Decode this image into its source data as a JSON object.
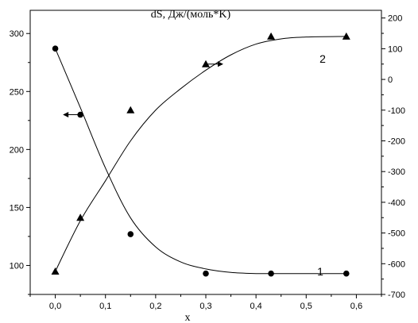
{
  "chart_data": {
    "type": "scatter",
    "title": "dS, Дж/(моль*K)",
    "xlabel": "x",
    "xlim": [
      -0.05,
      0.65
    ],
    "xticks": [
      "0,0",
      "0,1",
      "0,2",
      "0,3",
      "0,4",
      "0,5",
      "0,6"
    ],
    "y_left_lim": [
      75,
      320
    ],
    "y_left_ticks": [
      "100",
      "150",
      "200",
      "250",
      "300"
    ],
    "y_right_lim": [
      -700,
      225
    ],
    "y_right_ticks": [
      "200",
      "100",
      "0",
      "-100",
      "-200",
      "-300",
      "-400",
      "-500",
      "-600",
      "-700"
    ],
    "grid": false,
    "series": [
      {
        "label": "1",
        "axis": "left",
        "marker": "circle",
        "points": [
          [
            0.0,
            287
          ],
          [
            0.05,
            230
          ],
          [
            0.15,
            127
          ],
          [
            0.3,
            93
          ],
          [
            0.43,
            93
          ],
          [
            0.58,
            93
          ]
        ],
        "curve": [
          [
            0.0,
            287
          ],
          [
            0.05,
            236
          ],
          [
            0.1,
            184
          ],
          [
            0.15,
            141
          ],
          [
            0.2,
            116
          ],
          [
            0.25,
            103
          ],
          [
            0.3,
            97
          ],
          [
            0.35,
            94
          ],
          [
            0.4,
            93
          ],
          [
            0.43,
            93
          ],
          [
            0.5,
            93
          ],
          [
            0.58,
            93
          ]
        ]
      },
      {
        "label": "2",
        "axis": "right",
        "marker": "triangle",
        "points": [
          [
            0.0,
            -625
          ],
          [
            0.05,
            -450
          ],
          [
            0.15,
            -100
          ],
          [
            0.3,
            50
          ],
          [
            0.43,
            140
          ],
          [
            0.58,
            140
          ]
        ],
        "curve": [
          [
            0.0,
            -625
          ],
          [
            0.05,
            -460
          ],
          [
            0.1,
            -330
          ],
          [
            0.15,
            -200
          ],
          [
            0.2,
            -100
          ],
          [
            0.25,
            -30
          ],
          [
            0.3,
            30
          ],
          [
            0.35,
            80
          ],
          [
            0.4,
            115
          ],
          [
            0.45,
            132
          ],
          [
            0.5,
            138
          ],
          [
            0.58,
            140
          ]
        ]
      }
    ],
    "arrows": [
      {
        "series": "1",
        "direction": "left",
        "anchor": [
          0.05,
          230
        ]
      },
      {
        "series": "2",
        "direction": "right",
        "anchor": [
          0.3,
          50
        ]
      }
    ]
  }
}
